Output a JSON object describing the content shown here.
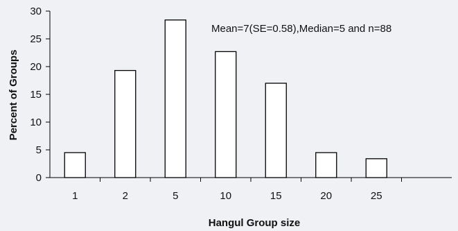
{
  "chart_data": {
    "type": "bar",
    "title": "",
    "annotation": "Mean=7(SE=0.58),Median=5 and n=88",
    "xlabel": "Hangul Group size",
    "ylabel": "Percent of Groups",
    "categories": [
      "1",
      "2",
      "5",
      "10",
      "15",
      "20",
      "25"
    ],
    "values": [
      4.5,
      19.3,
      28.4,
      22.7,
      17.0,
      4.5,
      3.4
    ],
    "ylim": [
      0,
      30
    ],
    "yticks": [
      "0",
      "5",
      "10",
      "15",
      "20",
      "25",
      "30"
    ],
    "grid": false,
    "legend": "none",
    "colors": {
      "bar_fill": "#ffffff",
      "bar_stroke": "#000000",
      "background": "#f0f1f4"
    }
  }
}
